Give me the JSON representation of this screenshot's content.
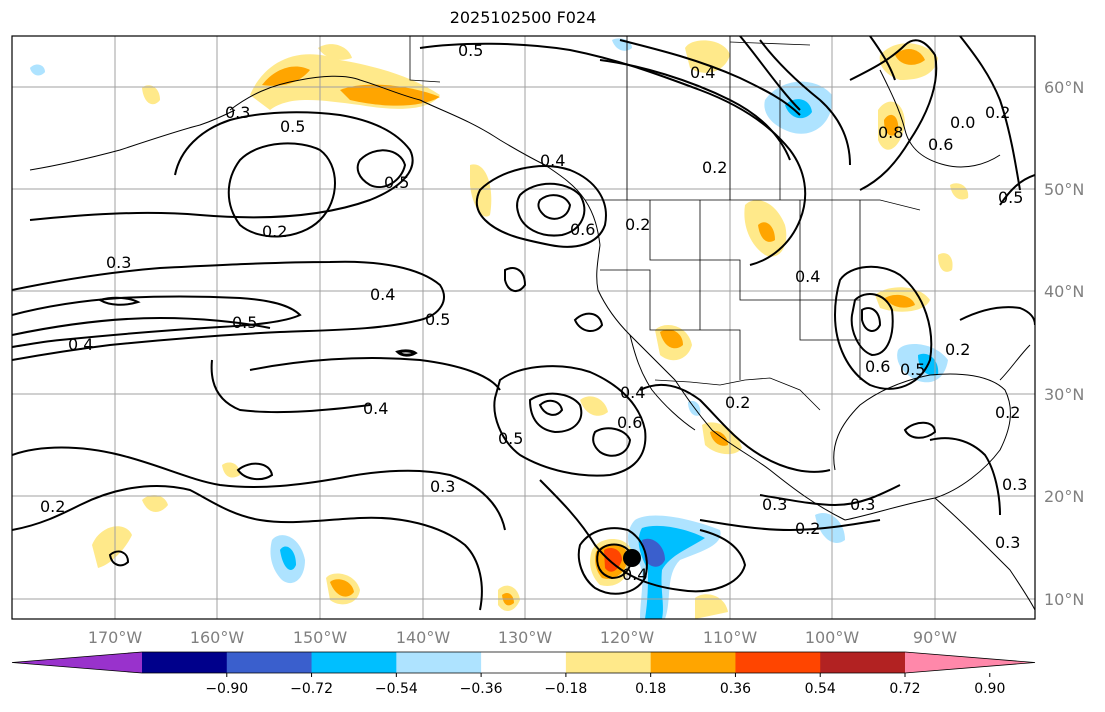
{
  "title": "2025102500 F024",
  "lat_labels": [
    "60°N",
    "50°N",
    "40°N",
    "30°N",
    "20°N",
    "10°N"
  ],
  "lon_labels": [
    "170°W",
    "160°W",
    "150°W",
    "140°W",
    "130°W",
    "120°W",
    "110°W",
    "100°W",
    "90°W"
  ],
  "colorbar": {
    "ticks": [
      "−0.90",
      "−0.72",
      "−0.54",
      "−0.36",
      "−0.18",
      "0.18",
      "0.36",
      "0.54",
      "0.72",
      "0.90"
    ],
    "colors": [
      "#9932cc",
      "#00008b",
      "#3a5fcd",
      "#00bfff",
      "#aee3ff",
      "#ffffff",
      "#ffe98a",
      "#ffa500",
      "#ff4500",
      "#b22222",
      "#ff88aa"
    ]
  },
  "contour_labels": [
    {
      "text": "0.5"
    },
    {
      "text": "0.4"
    },
    {
      "text": "0.3"
    },
    {
      "text": "0.2"
    },
    {
      "text": "0.5"
    },
    {
      "text": "0.5"
    },
    {
      "text": "0.4"
    },
    {
      "text": "0.5"
    },
    {
      "text": "0.4"
    },
    {
      "text": "0.3"
    },
    {
      "text": "0.2"
    },
    {
      "text": "0.4"
    },
    {
      "text": "0.6"
    },
    {
      "text": "0.5"
    },
    {
      "text": "0.2"
    },
    {
      "text": "0.4"
    },
    {
      "text": "0.5"
    },
    {
      "text": "0.8"
    },
    {
      "text": "0.6"
    },
    {
      "text": "0.2"
    },
    {
      "text": "0.3"
    },
    {
      "text": "0.2"
    },
    {
      "text": "0.3"
    },
    {
      "text": "0.5"
    },
    {
      "text": "0.4"
    },
    {
      "text": "0.6"
    },
    {
      "text": "0.4"
    },
    {
      "text": "0.3"
    },
    {
      "text": "0.2"
    },
    {
      "text": "0.2"
    },
    {
      "text": "0.4"
    },
    {
      "text": "0.6"
    },
    {
      "text": "0.5"
    },
    {
      "text": "0.2"
    },
    {
      "text": "0.3"
    },
    {
      "text": "0.3"
    },
    {
      "text": "0.2"
    },
    {
      "text": "0.0"
    }
  ],
  "colors": {
    "grid": "#a0a0a0",
    "contour": "#000000",
    "light_yellow": "#ffe98a",
    "orange": "#ffa500",
    "red_orange": "#ff4500",
    "light_blue": "#aee3ff",
    "sky_blue": "#00bfff",
    "blue": "#3a5fcd"
  },
  "storm_marker": "filled-circle"
}
